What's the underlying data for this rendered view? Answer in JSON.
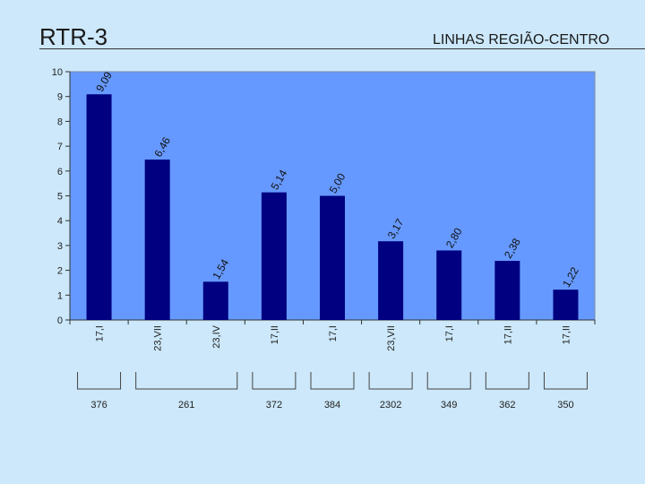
{
  "slide": {
    "title": "RTR-3",
    "subtitle": "LINHAS REGIÃO-CENTRO"
  },
  "colors": {
    "background": "#cce8fa",
    "plot_area": "#6699ff",
    "bar": "#000080"
  },
  "chart_data": {
    "type": "bar",
    "categories": [
      "17,I",
      "23,VII",
      "23,IV",
      "17,II",
      "17,I",
      "23,VII",
      "17,I",
      "17,II",
      "17,II"
    ],
    "values": [
      9.09,
      6.46,
      1.54,
      5.14,
      5.0,
      3.17,
      2.8,
      2.38,
      1.22
    ],
    "data_labels": [
      "9,09",
      "6,46",
      "1,54",
      "5,14",
      "5,00",
      "3,17",
      "2,80",
      "2,38",
      "1,22"
    ],
    "ylim": [
      0,
      10
    ],
    "yticks": [
      0,
      1,
      2,
      3,
      4,
      5,
      6,
      7,
      8,
      9,
      10
    ],
    "grid": false,
    "legend": "none",
    "groups": [
      {
        "label": "376",
        "span": [
          0,
          0
        ]
      },
      {
        "label": "261",
        "span": [
          1,
          2
        ]
      },
      {
        "label": "372",
        "span": [
          3,
          3
        ]
      },
      {
        "label": "384",
        "span": [
          4,
          4
        ]
      },
      {
        "label": "2302",
        "span": [
          5,
          5
        ]
      },
      {
        "label": "349",
        "span": [
          6,
          6
        ]
      },
      {
        "label": "362",
        "span": [
          7,
          7
        ]
      },
      {
        "label": "350",
        "span": [
          8,
          8
        ]
      }
    ]
  }
}
